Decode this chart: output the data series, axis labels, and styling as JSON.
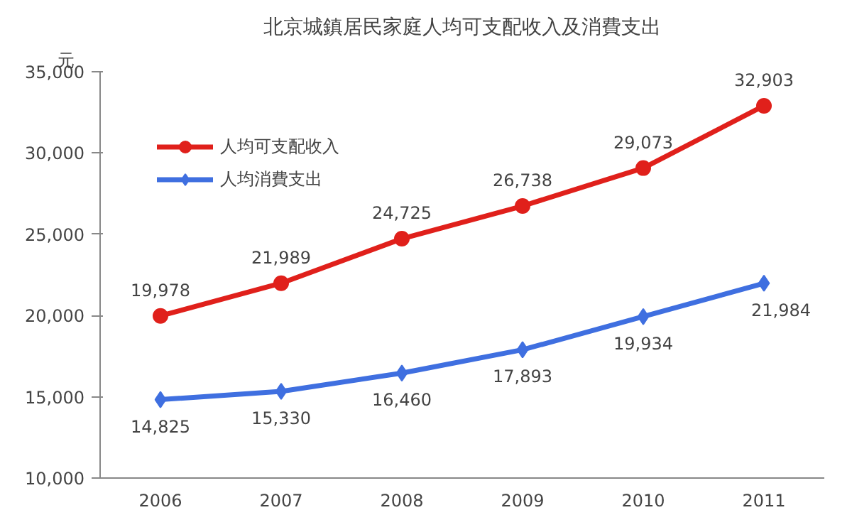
{
  "chart_data": {
    "type": "line",
    "title": "北京城鎮居民家庭人均可支配收入及消費支出",
    "ylabel": "元",
    "categories": [
      "2006",
      "2007",
      "2008",
      "2009",
      "2010",
      "2011"
    ],
    "series": [
      {
        "name": "人均可支配收入",
        "color": "#e0201b",
        "marker": "circle",
        "values": [
          19978,
          21989,
          24725,
          26738,
          29073,
          32903
        ],
        "value_labels": [
          "19,978",
          "21,989",
          "24,725",
          "26,738",
          "29,073",
          "32,903"
        ]
      },
      {
        "name": "人均消費支出",
        "color": "#3f6fe0",
        "marker": "diamond",
        "values": [
          14825,
          15330,
          16460,
          17893,
          19934,
          21984
        ],
        "value_labels": [
          "14,825",
          "15,330",
          "16,460",
          "17,893",
          "19,934",
          "21,984"
        ]
      }
    ],
    "ylim": [
      10000,
      35000
    ],
    "yticks": [
      {
        "value": 10000,
        "label": "10,000"
      },
      {
        "value": 15000,
        "label": "15,000"
      },
      {
        "value": 20000,
        "label": "20,000"
      },
      {
        "value": 25000,
        "label": "25,000"
      },
      {
        "value": 30000,
        "label": "30,000"
      },
      {
        "value": 35000,
        "label": "35,000"
      }
    ],
    "legend": "top left",
    "grid": false
  }
}
